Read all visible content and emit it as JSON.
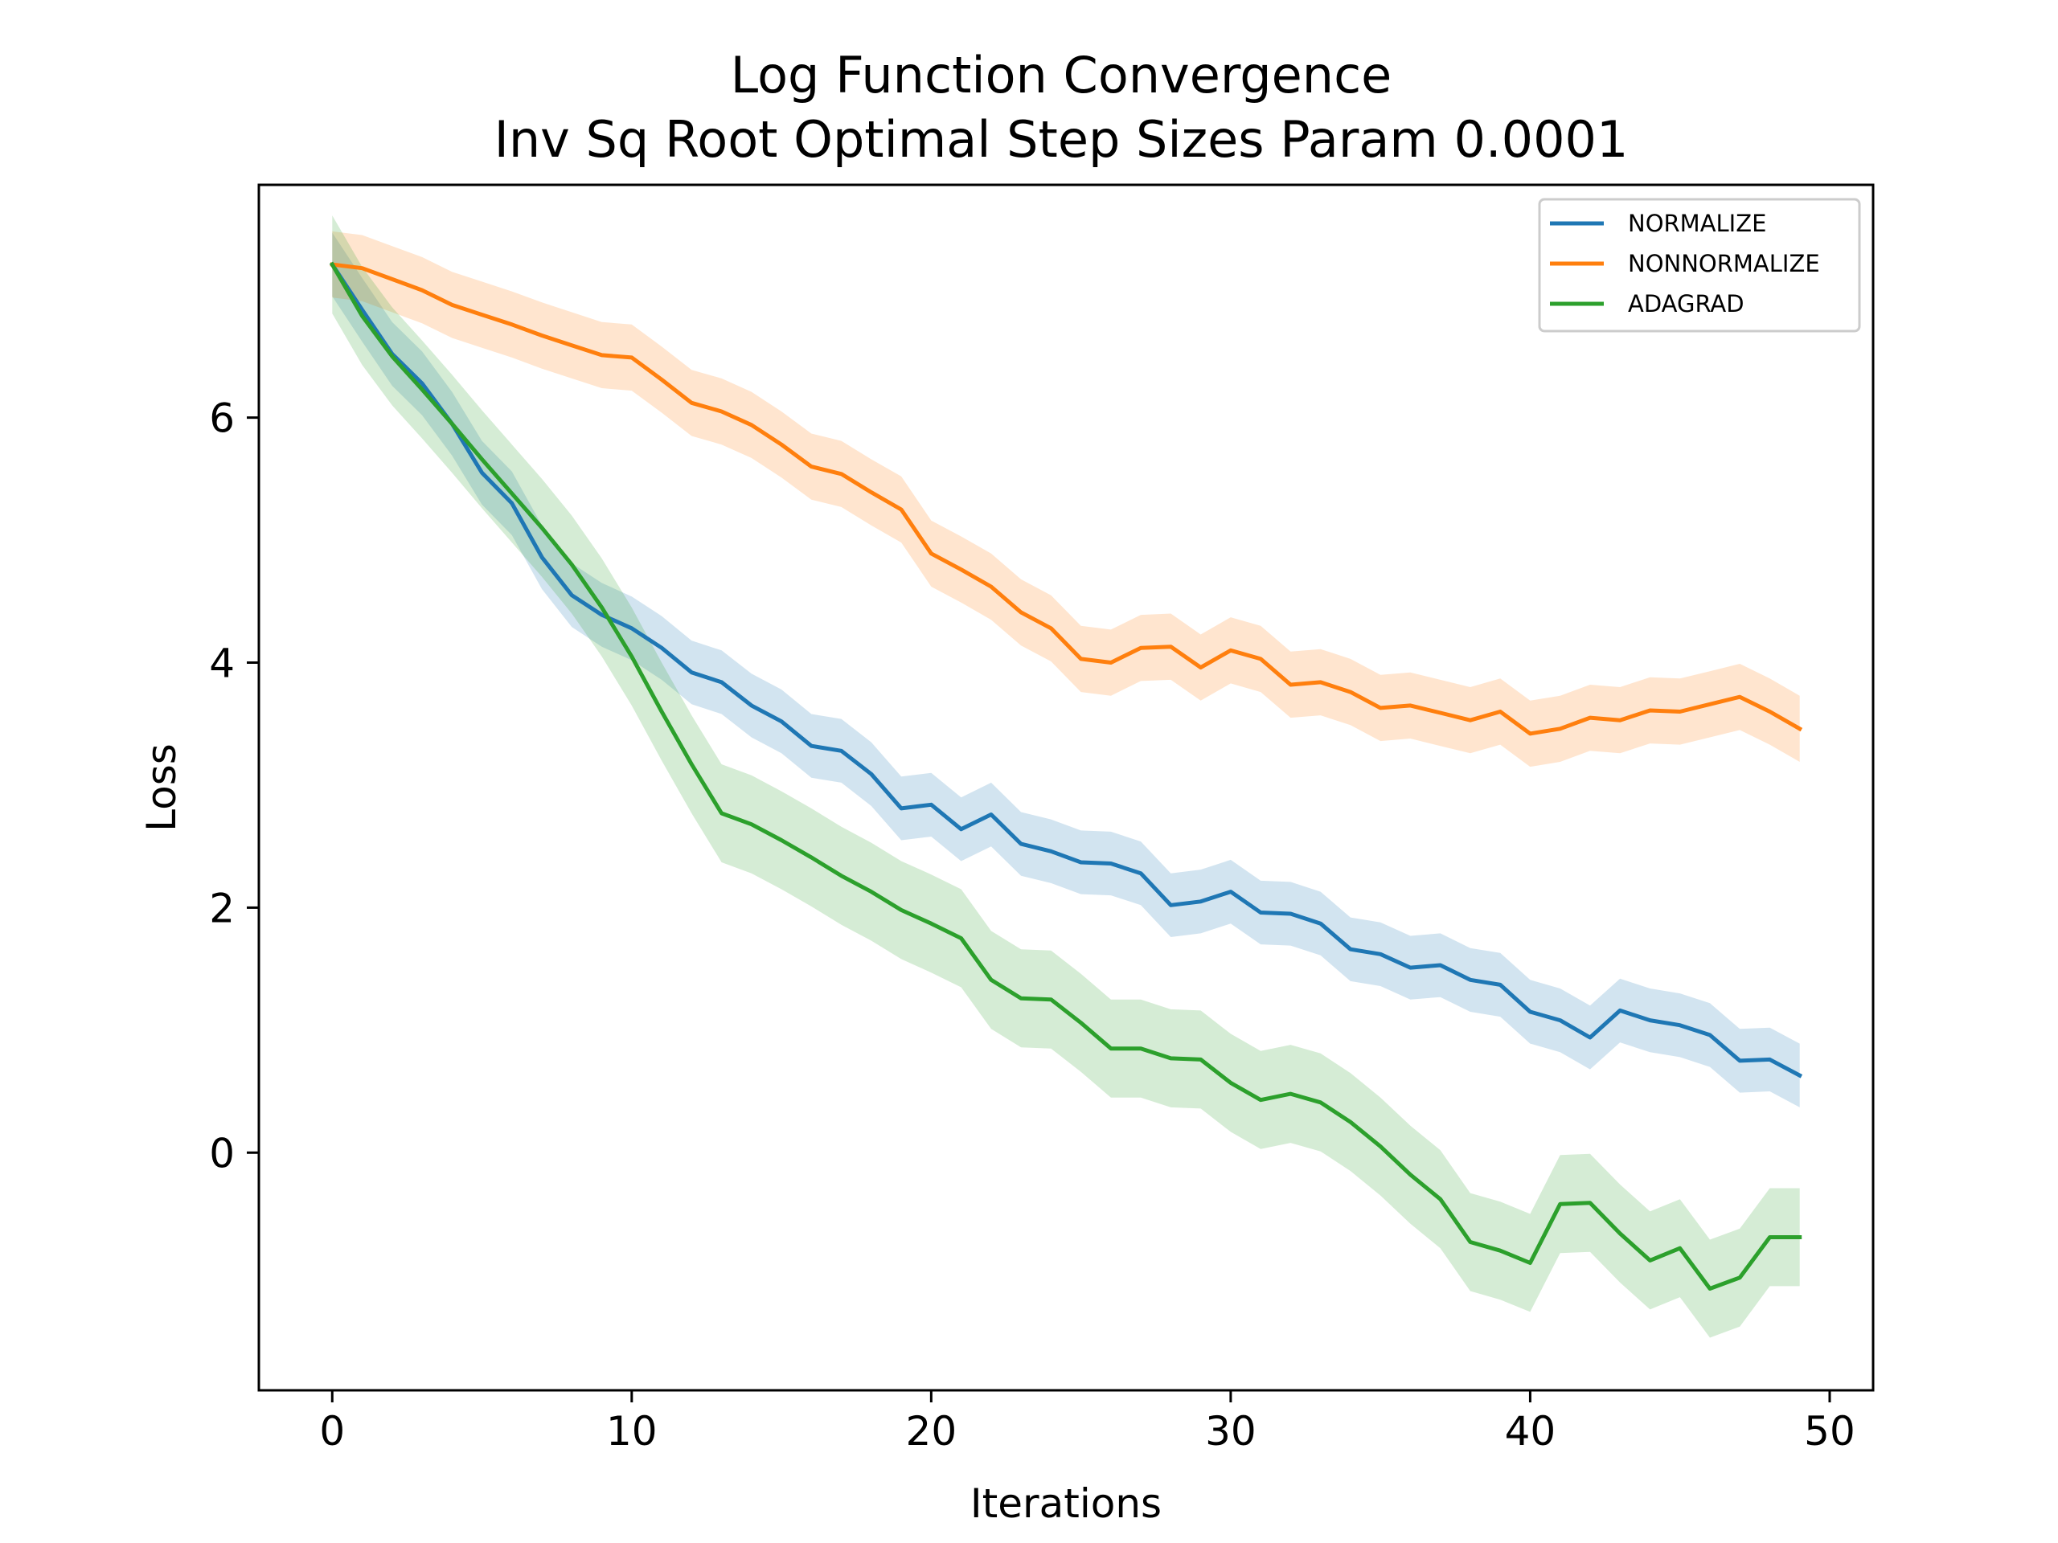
{
  "chart_data": {
    "type": "line",
    "title": "Log Function Convergence",
    "subtitle": "Inv Sq Root Optimal Step Sizes Param 0.0001",
    "xlabel": "Iterations",
    "ylabel": "Loss",
    "xlim": [
      -2.45,
      51.45
    ],
    "ylim": [
      -1.94,
      7.9
    ],
    "xticks": [
      0,
      10,
      20,
      30,
      40,
      50
    ],
    "yticks": [
      0,
      2,
      4,
      6
    ],
    "grid": false,
    "legend_position": "top-right",
    "shaded_band": "uncertainty band around each series",
    "x": [
      0,
      1,
      2,
      3,
      4,
      5,
      6,
      7,
      8,
      9,
      10,
      11,
      12,
      13,
      14,
      15,
      16,
      17,
      18,
      19,
      20,
      21,
      22,
      23,
      24,
      25,
      26,
      27,
      28,
      29,
      30,
      31,
      32,
      33,
      34,
      35,
      36,
      37,
      38,
      39,
      40,
      41,
      42,
      43,
      44,
      45,
      46,
      47,
      48,
      49
    ],
    "series": [
      {
        "name": "NORMALIZE",
        "color": "#1f77b4",
        "values": [
          7.25,
          6.88,
          6.52,
          6.28,
          5.95,
          5.55,
          5.3,
          4.86,
          4.55,
          4.39,
          4.28,
          4.12,
          3.92,
          3.84,
          3.65,
          3.52,
          3.32,
          3.28,
          3.09,
          2.81,
          2.84,
          2.64,
          2.76,
          2.52,
          2.46,
          2.37,
          2.36,
          2.28,
          2.02,
          2.05,
          2.13,
          1.96,
          1.95,
          1.87,
          1.66,
          1.62,
          1.51,
          1.53,
          1.41,
          1.37,
          1.15,
          1.08,
          0.94,
          1.16,
          1.08,
          1.04,
          0.96,
          0.75,
          0.76,
          0.63
        ],
        "band": 0.26
      },
      {
        "name": "NONNORMALIZE",
        "color": "#ff7f0e",
        "values": [
          7.25,
          7.22,
          7.13,
          7.04,
          6.92,
          6.84,
          6.76,
          6.67,
          6.59,
          6.51,
          6.49,
          6.31,
          6.12,
          6.05,
          5.94,
          5.78,
          5.6,
          5.54,
          5.39,
          5.25,
          4.89,
          4.76,
          4.62,
          4.41,
          4.28,
          4.03,
          4.0,
          4.12,
          4.13,
          3.96,
          4.1,
          4.03,
          3.82,
          3.84,
          3.76,
          3.63,
          3.65,
          3.59,
          3.53,
          3.6,
          3.42,
          3.46,
          3.55,
          3.53,
          3.61,
          3.6,
          3.66,
          3.72,
          3.6,
          3.46
        ],
        "band": 0.27
      },
      {
        "name": "ADAGRAD",
        "color": "#2ca02c",
        "values": [
          7.25,
          6.83,
          6.5,
          6.23,
          5.95,
          5.66,
          5.38,
          5.1,
          4.8,
          4.45,
          4.05,
          3.6,
          3.17,
          2.77,
          2.68,
          2.55,
          2.41,
          2.26,
          2.13,
          1.98,
          1.87,
          1.75,
          1.41,
          1.26,
          1.25,
          1.06,
          0.85,
          0.85,
          0.77,
          0.76,
          0.57,
          0.43,
          0.48,
          0.41,
          0.25,
          0.05,
          -0.18,
          -0.38,
          -0.73,
          -0.8,
          -0.9,
          -0.42,
          -0.41,
          -0.66,
          -0.88,
          -0.78,
          -1.11,
          -1.02,
          -0.69,
          -0.69
        ],
        "band": 0.4
      }
    ]
  }
}
